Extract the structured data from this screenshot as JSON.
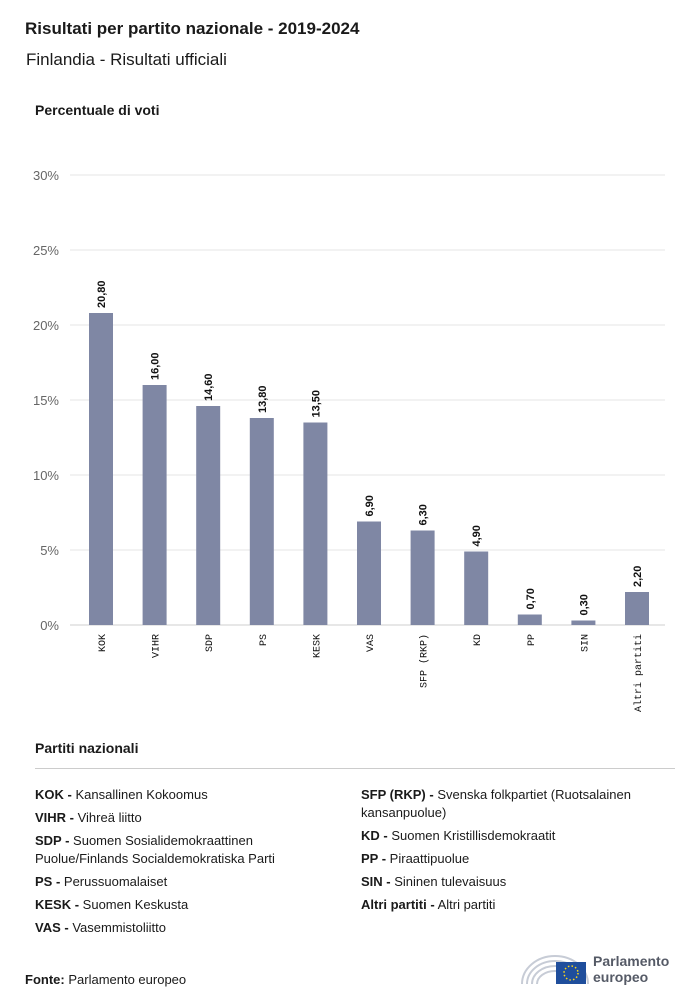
{
  "header": {
    "title": "Risultati per partito nazionale - 2019-2024",
    "subtitle": "Finlandia - Risultati ufficiali"
  },
  "colors": {
    "bar": "#7f87a4",
    "grid": "#e6e6e6",
    "axis": "#cfcfcf",
    "logo_blue": "#1f4e9c"
  },
  "chart_data": {
    "type": "bar",
    "ylabel": "Percentuale di voti",
    "ylim": [
      0,
      30
    ],
    "yticks": [
      "0%",
      "5%",
      "10%",
      "15%",
      "20%",
      "25%",
      "30%"
    ],
    "grid": true,
    "categories": [
      "KOK",
      "VIHR",
      "SDP",
      "PS",
      "KESK",
      "VAS",
      "SFP (RKP)",
      "KD",
      "PP",
      "SIN",
      "Altri partiti"
    ],
    "values": [
      20.8,
      16.0,
      14.6,
      13.8,
      13.5,
      6.9,
      6.3,
      4.9,
      0.7,
      0.3,
      2.2
    ],
    "value_labels": [
      "20,80",
      "16,00",
      "14,60",
      "13,80",
      "13,50",
      "6,90",
      "6,30",
      "4,90",
      "0,70",
      "0,30",
      "2,20"
    ]
  },
  "legend": {
    "title": "Partiti nazionali",
    "left": [
      {
        "code": "KOK -",
        "name": "Kansallinen Kokoomus"
      },
      {
        "code": "VIHR -",
        "name": "Vihreä liitto"
      },
      {
        "code": "SDP -",
        "name": "Suomen Sosialidemokraattinen Puolue/Finlands Socialdemokratiska Parti"
      },
      {
        "code": "PS -",
        "name": "Perussuomalaiset"
      },
      {
        "code": "KESK -",
        "name": "Suomen Keskusta"
      },
      {
        "code": "VAS -",
        "name": "Vasemmistoliitto"
      }
    ],
    "right": [
      {
        "code": "SFP (RKP) -",
        "name": "Svenska folkpartiet (Ruotsalainen kansanpuolue)"
      },
      {
        "code": "KD -",
        "name": "Suomen Kristillisdemokraatit"
      },
      {
        "code": "PP -",
        "name": "Piraattipuolue"
      },
      {
        "code": "SIN -",
        "name": "Sininen tulevaisuus"
      },
      {
        "code": "Altri partiti -",
        "name": "Altri partiti"
      }
    ]
  },
  "footer": {
    "source_label": "Fonte:",
    "source_value": "Parlamento europeo",
    "logo_line1": "Parlamento",
    "logo_line2": "europeo"
  }
}
